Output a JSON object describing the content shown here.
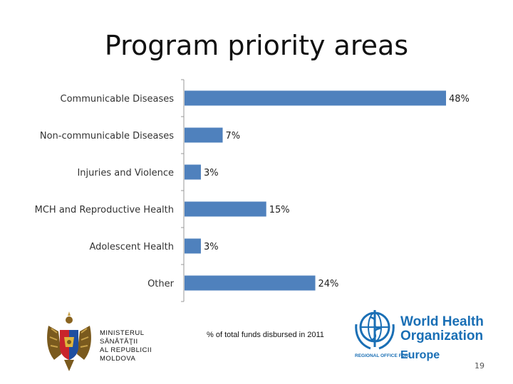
{
  "slide": {
    "title": "Program priority areas",
    "page_number": "19"
  },
  "chart_data": {
    "type": "bar",
    "orientation": "horizontal",
    "categories": [
      "Communicable Diseases",
      "Non-communicable Diseases",
      "Injuries and Violence",
      "MCH and Reproductive Health",
      "Adolescent Health",
      "Other"
    ],
    "values": [
      48,
      7,
      3,
      15,
      3,
      24
    ],
    "value_labels": [
      "48%",
      "7%",
      "3%",
      "15%",
      "3%",
      "24%"
    ],
    "xlim": [
      0,
      48
    ],
    "xlabel": "% of total funds disbursed in 2011",
    "grid": false,
    "bar_color": "#4f81bd"
  },
  "ministry": {
    "lines": [
      "MINISTERUL",
      "SĂNĂTĂŢII",
      "AL REPUBLICII",
      "MOLDOVA"
    ]
  },
  "who_logo": {
    "name_line1": "World Health",
    "name_line2": "Organization",
    "regional_office": "REGIONAL OFFICE FOR",
    "region": "Europe",
    "color": "#1a6fb5"
  }
}
